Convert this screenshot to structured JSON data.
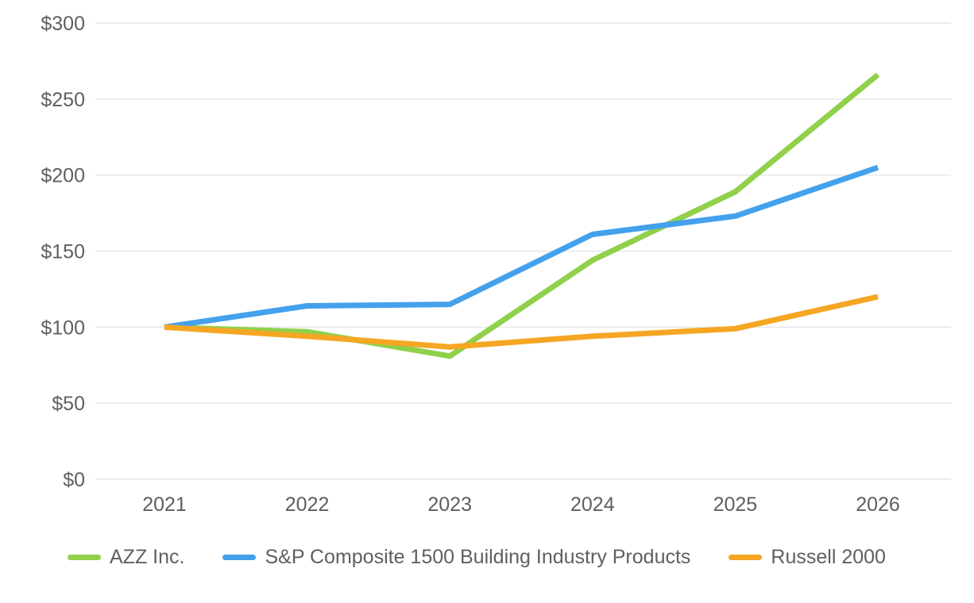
{
  "chart_data": {
    "type": "line",
    "title": "",
    "xlabel": "",
    "ylabel": "",
    "categories": [
      "2021",
      "2022",
      "2023",
      "2024",
      "2025",
      "2026"
    ],
    "series": [
      {
        "name": "AZZ Inc.",
        "color": "#90d04a",
        "values": [
          100,
          97,
          81,
          144,
          189,
          266
        ]
      },
      {
        "name": "S&P Composite 1500 Building Industry Products",
        "color": "#44a1ec",
        "values": [
          100,
          114,
          115,
          161,
          173,
          205
        ]
      },
      {
        "name": "Russell 2000",
        "color": "#f5a623",
        "values": [
          100,
          94,
          87,
          94,
          99,
          120
        ]
      }
    ],
    "ylim": [
      0,
      300
    ],
    "ytick_values": [
      0,
      50,
      100,
      150,
      200,
      250,
      300
    ],
    "yticks": [
      "$0",
      "$50",
      "$100",
      "$150",
      "$200",
      "$250",
      "$300"
    ],
    "grid": true,
    "legend_position": "bottom"
  },
  "colors": {
    "grid_line": "#e7e7e7",
    "axis_text": "#5f5f5f",
    "background": "#ffffff"
  }
}
